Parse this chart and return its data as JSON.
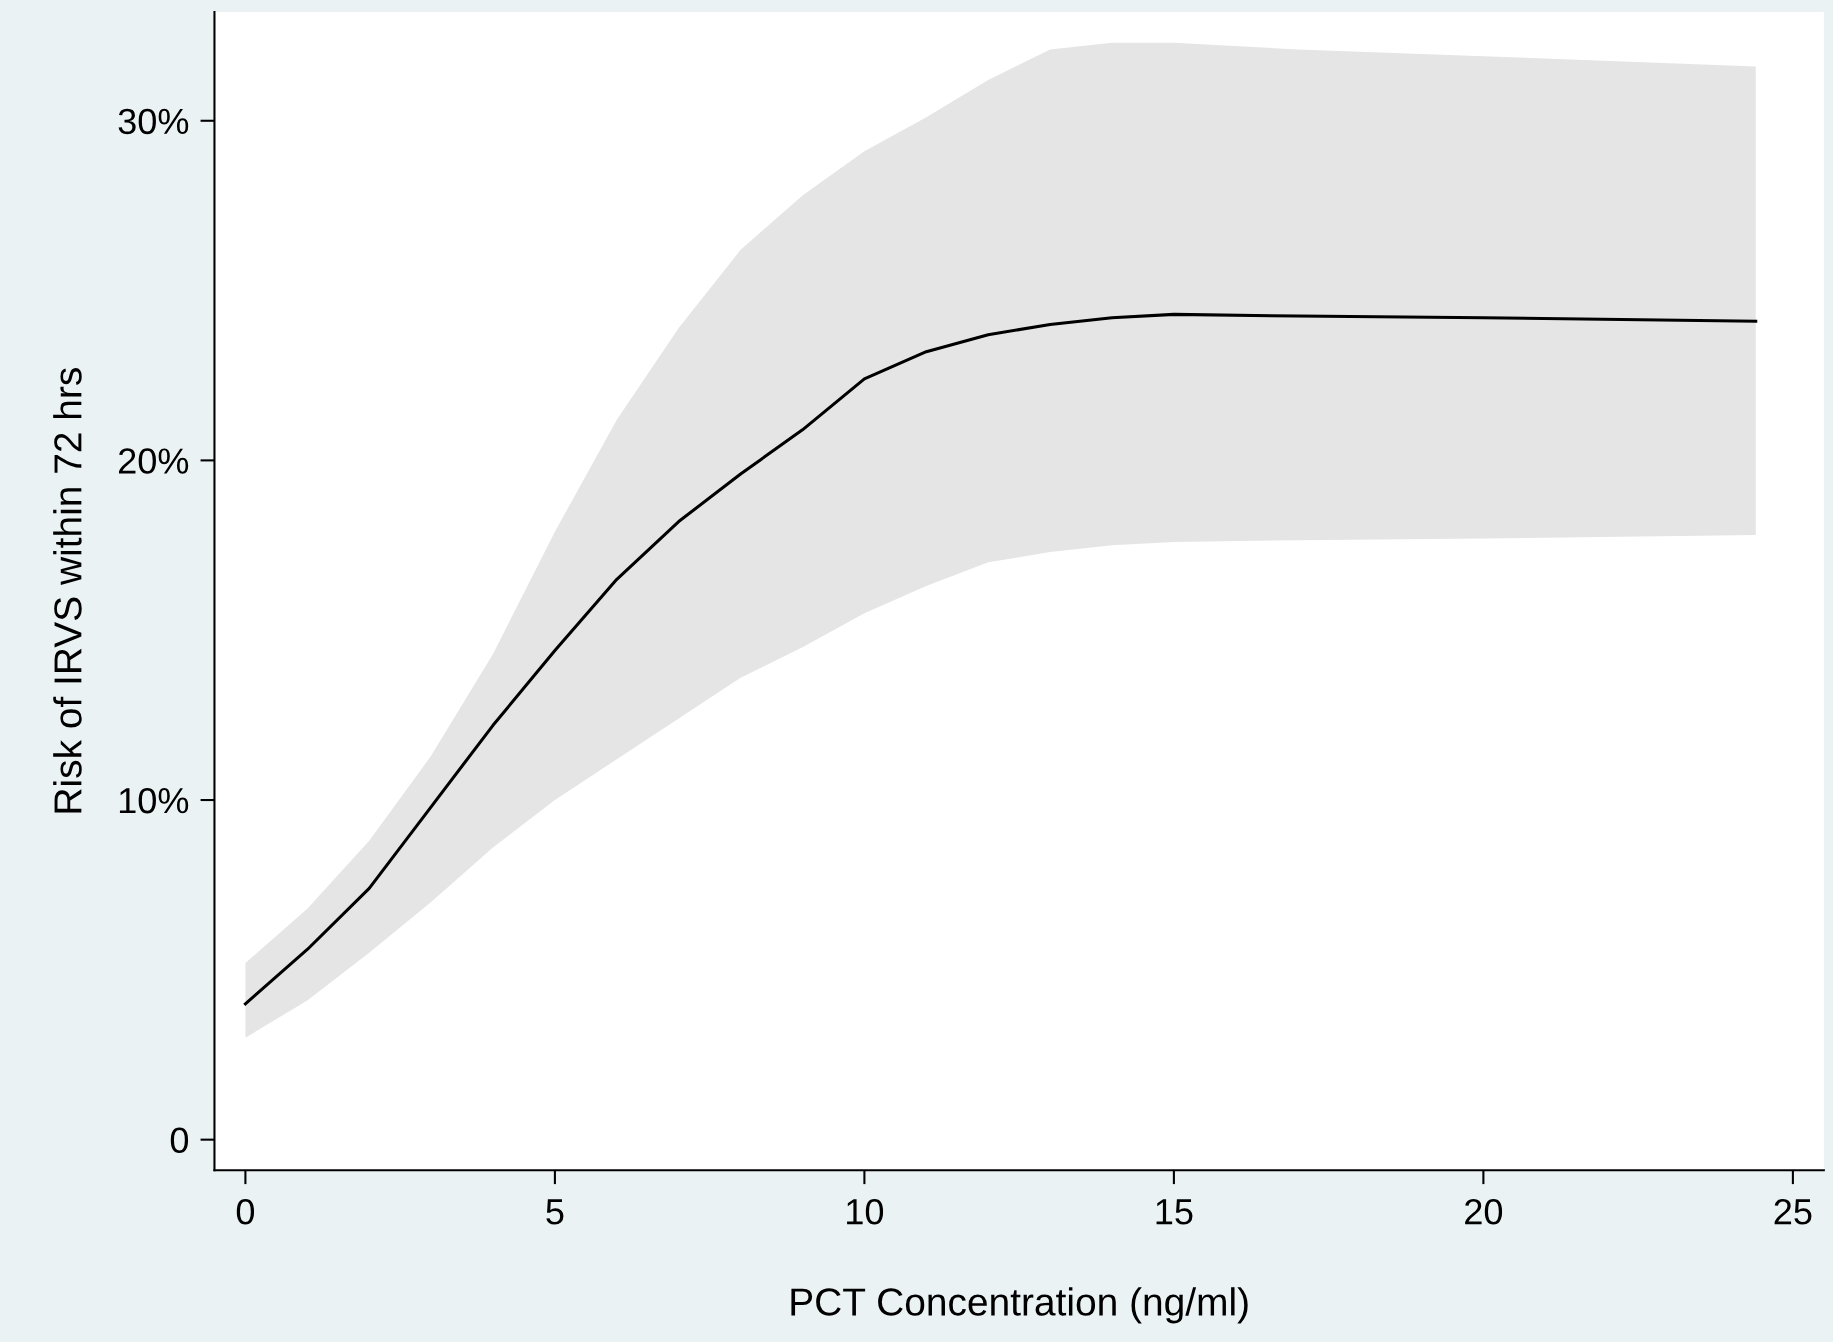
{
  "chart_data": {
    "type": "line",
    "xlabel": "PCT Concentration (ng/ml)",
    "ylabel": "Risk of IRVS within 72 hrs",
    "x": [
      0,
      1,
      2,
      3,
      4,
      5,
      6,
      7,
      8,
      9,
      10,
      11,
      12,
      13,
      14,
      15,
      17,
      20,
      24.4
    ],
    "series": [
      {
        "color": "#000000",
        "values": [
          4.0,
          5.6,
          7.4,
          9.8,
          12.2,
          14.4,
          16.5,
          18.2,
          19.6,
          20.9,
          22.4,
          23.2,
          23.7,
          24.0,
          24.2,
          24.3,
          24.25,
          24.2,
          24.1
        ],
        "lower": [
          3.0,
          4.1,
          5.5,
          7.0,
          8.6,
          10.0,
          11.2,
          12.4,
          13.6,
          14.5,
          15.5,
          16.3,
          17.0,
          17.3,
          17.5,
          17.6,
          17.65,
          17.7,
          17.8
        ],
        "upper": [
          5.2,
          6.8,
          8.8,
          11.3,
          14.3,
          17.9,
          21.2,
          23.9,
          26.2,
          27.8,
          29.1,
          30.1,
          31.2,
          32.1,
          32.3,
          32.3,
          32.1,
          31.9,
          31.6
        ]
      }
    ],
    "xlim": [
      -0.5,
      25.5
    ],
    "ylim": [
      -0.9,
      33.2
    ],
    "xticks": [
      0,
      5,
      10,
      15,
      20,
      25
    ],
    "yticks": [
      0,
      {
        "value": 10,
        "label": "10%"
      },
      {
        "value": 20,
        "label": "20%"
      },
      {
        "value": 30,
        "label": "30%"
      }
    ],
    "grid": false,
    "legend": false,
    "marker": "none",
    "line_style": "solid"
  }
}
